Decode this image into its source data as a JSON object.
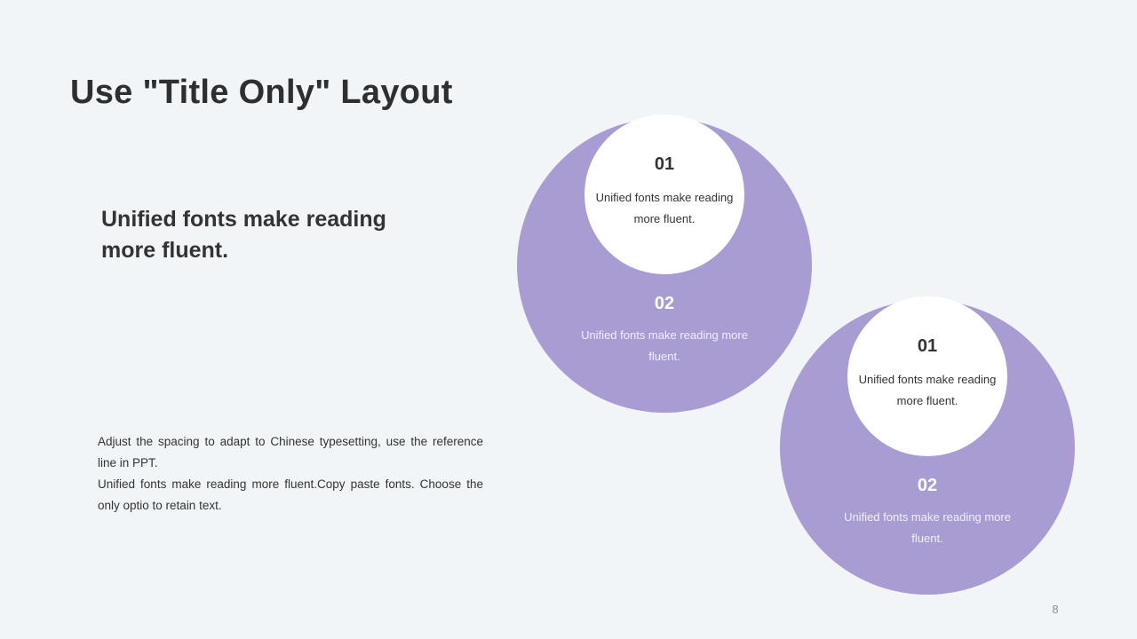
{
  "slide": {
    "title": "Use \"Title Only\" Layout",
    "subtitle": "Unified fonts make reading more fluent.",
    "body": {
      "paragraph_1": "Adjust the spacing to adapt to Chinese typesetting, use the reference line in PPT.",
      "paragraph_2": "Unified fonts make reading more fluent.Copy paste fonts. Choose the only optio to retain text."
    },
    "page_number": "8"
  },
  "circle_groups": [
    {
      "step_1": {
        "number": "01",
        "text": "Unified fonts make reading more fluent."
      },
      "step_2": {
        "number": "02",
        "text": "Unified fonts make reading more fluent."
      }
    },
    {
      "step_1": {
        "number": "01",
        "text": "Unified fonts make reading more fluent."
      },
      "step_2": {
        "number": "02",
        "text": "Unified fonts make reading more fluent."
      }
    }
  ],
  "colors": {
    "background": "#f1f5f7",
    "accent_purple": "#a99cd3",
    "circle_white": "#ffffff",
    "text_dark": "#333333",
    "text_light": "#f2f0fa",
    "page_number": "#8b8f92"
  }
}
